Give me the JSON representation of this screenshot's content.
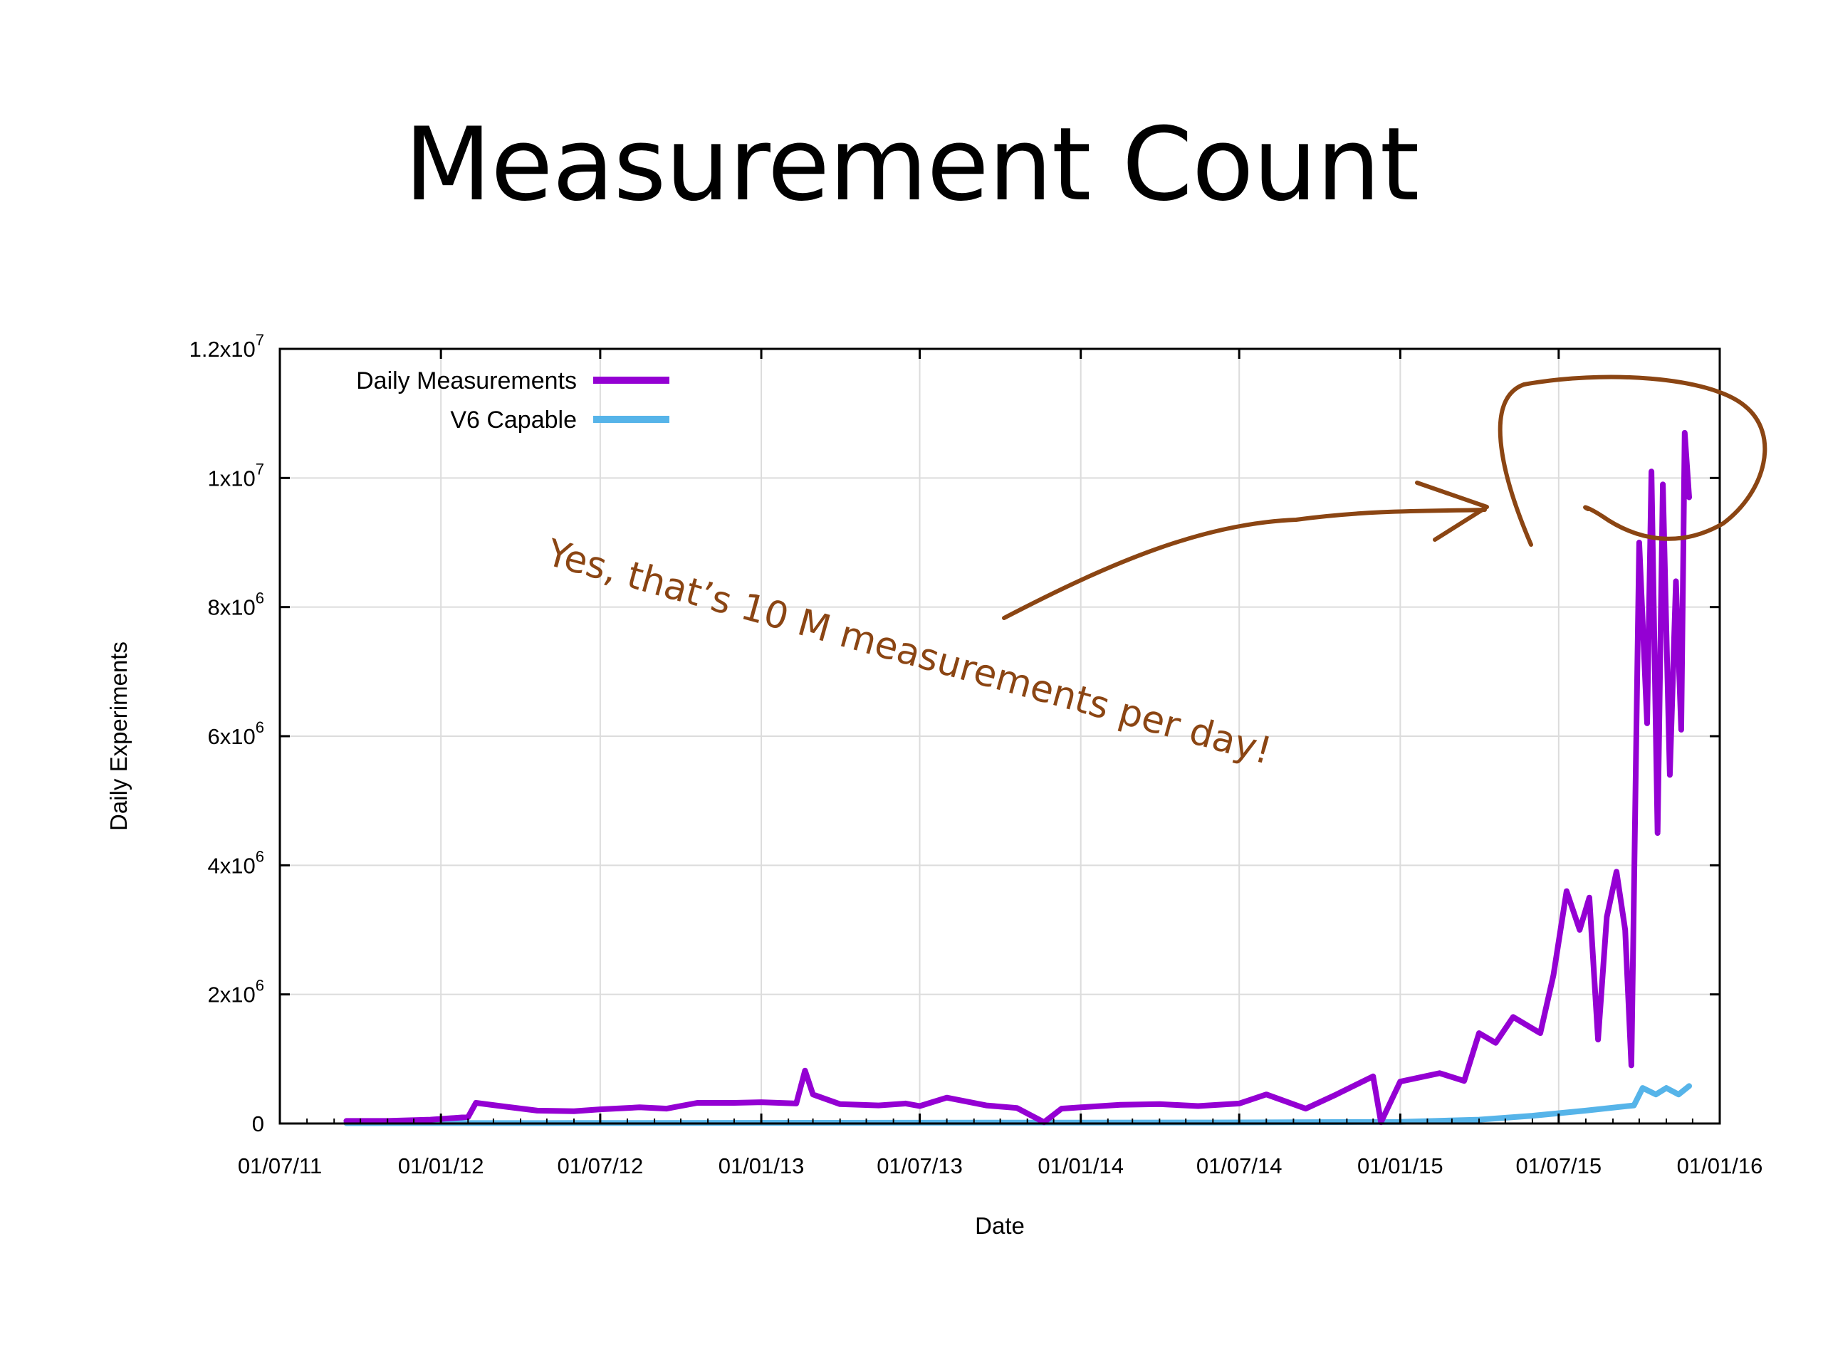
{
  "slide": {
    "title": "Measurement Count"
  },
  "chart_data": {
    "type": "line",
    "xlabel": "Date",
    "ylabel": "Daily Experiments",
    "x_type": "date",
    "xlim": [
      "2011-07-01",
      "2016-01-01"
    ],
    "ylim": [
      0,
      12000000
    ],
    "grid": true,
    "legend_position": "top-left",
    "x_ticks": [
      {
        "date": "2011-07-01",
        "label": "01/07/11"
      },
      {
        "date": "2012-01-01",
        "label": "01/01/12"
      },
      {
        "date": "2012-07-01",
        "label": "01/07/12"
      },
      {
        "date": "2013-01-01",
        "label": "01/01/13"
      },
      {
        "date": "2013-07-01",
        "label": "01/07/13"
      },
      {
        "date": "2014-01-01",
        "label": "01/01/14"
      },
      {
        "date": "2014-07-01",
        "label": "01/07/14"
      },
      {
        "date": "2015-01-01",
        "label": "01/01/15"
      },
      {
        "date": "2015-07-01",
        "label": "01/07/15"
      },
      {
        "date": "2016-01-01",
        "label": "01/01/16"
      }
    ],
    "y_ticks": [
      {
        "value": 0,
        "mantissa": "0",
        "exponent": ""
      },
      {
        "value": 2000000,
        "mantissa": "2x10",
        "exponent": "6"
      },
      {
        "value": 4000000,
        "mantissa": "4x10",
        "exponent": "6"
      },
      {
        "value": 6000000,
        "mantissa": "6x10",
        "exponent": "6"
      },
      {
        "value": 8000000,
        "mantissa": "8x10",
        "exponent": "6"
      },
      {
        "value": 10000000,
        "mantissa": "1x10",
        "exponent": "7"
      },
      {
        "value": 12000000,
        "mantissa": "1.2x10",
        "exponent": "7"
      }
    ],
    "series": [
      {
        "name": "Daily Measurements",
        "color": "#9400d3",
        "points": [
          [
            "2011-09-15",
            40000
          ],
          [
            "2011-11-01",
            40000
          ],
          [
            "2011-12-20",
            60000
          ],
          [
            "2012-02-01",
            100000
          ],
          [
            "2012-02-10",
            320000
          ],
          [
            "2012-03-15",
            260000
          ],
          [
            "2012-04-20",
            200000
          ],
          [
            "2012-06-01",
            190000
          ],
          [
            "2012-07-01",
            220000
          ],
          [
            "2012-08-15",
            250000
          ],
          [
            "2012-09-15",
            230000
          ],
          [
            "2012-10-20",
            320000
          ],
          [
            "2012-12-01",
            320000
          ],
          [
            "2013-01-01",
            330000
          ],
          [
            "2013-02-10",
            310000
          ],
          [
            "2013-02-20",
            820000
          ],
          [
            "2013-03-01",
            450000
          ],
          [
            "2013-04-01",
            300000
          ],
          [
            "2013-05-15",
            280000
          ],
          [
            "2013-06-15",
            310000
          ],
          [
            "2013-07-01",
            270000
          ],
          [
            "2013-08-01",
            400000
          ],
          [
            "2013-09-15",
            280000
          ],
          [
            "2013-10-20",
            240000
          ],
          [
            "2013-11-20",
            20000
          ],
          [
            "2013-12-10",
            230000
          ],
          [
            "2014-01-01",
            250000
          ],
          [
            "2014-02-15",
            290000
          ],
          [
            "2014-04-01",
            300000
          ],
          [
            "2014-05-15",
            270000
          ],
          [
            "2014-07-01",
            310000
          ],
          [
            "2014-08-01",
            450000
          ],
          [
            "2014-09-15",
            230000
          ],
          [
            "2014-10-20",
            450000
          ],
          [
            "2014-12-01",
            730000
          ],
          [
            "2014-12-10",
            20000
          ],
          [
            "2015-01-01",
            650000
          ],
          [
            "2015-02-15",
            780000
          ],
          [
            "2015-03-15",
            660000
          ],
          [
            "2015-04-01",
            1400000
          ],
          [
            "2015-04-20",
            1250000
          ],
          [
            "2015-05-10",
            1650000
          ],
          [
            "2015-06-10",
            1400000
          ],
          [
            "2015-06-25",
            2300000
          ],
          [
            "2015-07-10",
            3600000
          ],
          [
            "2015-07-25",
            3000000
          ],
          [
            "2015-08-05",
            3500000
          ],
          [
            "2015-08-15",
            1300000
          ],
          [
            "2015-08-25",
            3200000
          ],
          [
            "2015-09-05",
            3900000
          ],
          [
            "2015-09-15",
            3000000
          ],
          [
            "2015-09-22",
            900000
          ],
          [
            "2015-10-01",
            9000000
          ],
          [
            "2015-10-10",
            6200000
          ],
          [
            "2015-10-15",
            10100000
          ],
          [
            "2015-10-22",
            4500000
          ],
          [
            "2015-10-28",
            9900000
          ],
          [
            "2015-11-05",
            5400000
          ],
          [
            "2015-11-12",
            8400000
          ],
          [
            "2015-11-18",
            6100000
          ],
          [
            "2015-11-22",
            10700000
          ],
          [
            "2015-11-27",
            9700000
          ]
        ]
      },
      {
        "name": "V6 Capable",
        "color": "#56b4e9",
        "points": [
          [
            "2011-09-15",
            5000
          ],
          [
            "2012-06-01",
            8000
          ],
          [
            "2013-06-01",
            12000
          ],
          [
            "2014-06-01",
            15000
          ],
          [
            "2015-01-01",
            25000
          ],
          [
            "2015-04-01",
            60000
          ],
          [
            "2015-06-01",
            120000
          ],
          [
            "2015-08-01",
            200000
          ],
          [
            "2015-09-25",
            280000
          ],
          [
            "2015-10-05",
            550000
          ],
          [
            "2015-10-20",
            450000
          ],
          [
            "2015-11-01",
            550000
          ],
          [
            "2015-11-15",
            450000
          ],
          [
            "2015-11-27",
            580000
          ]
        ]
      }
    ]
  },
  "annotation": {
    "text": "Yes, that’s 10 M measurements per day!",
    "color": "#8b4513"
  }
}
